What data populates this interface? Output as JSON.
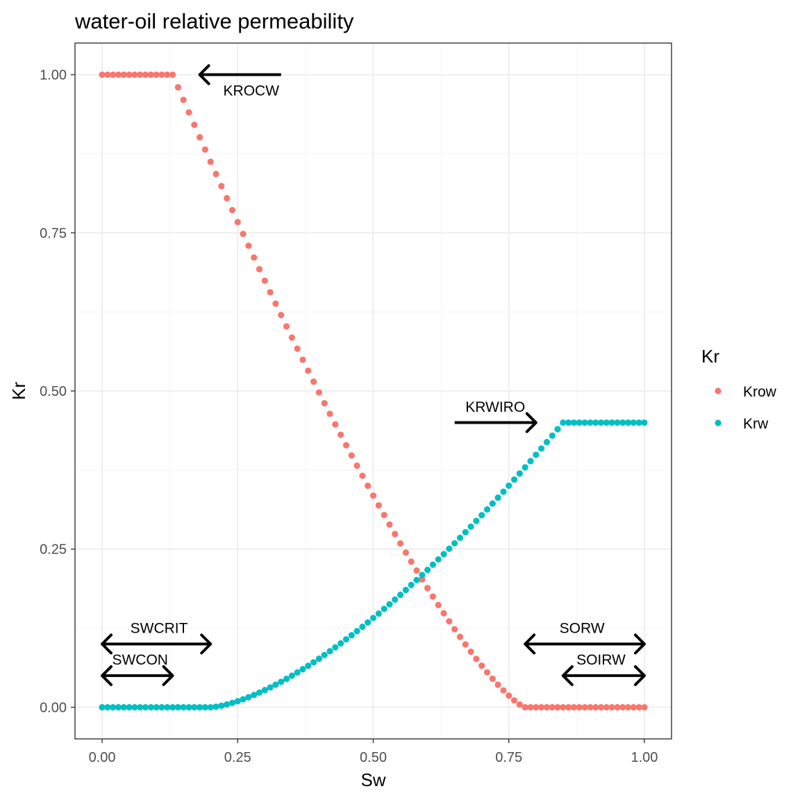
{
  "chart_data": {
    "type": "scatter",
    "title": "water-oil relative permeability",
    "xlabel": "Sw",
    "ylabel": "Kr",
    "xlim": [
      -0.05,
      1.05
    ],
    "ylim": [
      -0.05,
      1.05
    ],
    "x_ticks": [
      0,
      0.25,
      0.5,
      0.75,
      1.0
    ],
    "x_tick_labels": [
      "0.00",
      "0.25",
      "0.50",
      "0.75",
      "1.00"
    ],
    "y_ticks": [
      0,
      0.25,
      0.5,
      0.75,
      1.0
    ],
    "y_tick_labels": [
      "0.00",
      "0.25",
      "0.50",
      "0.75",
      "1.00"
    ],
    "grid": true,
    "legend": {
      "title": "Kr",
      "placement": "right"
    },
    "params": {
      "SWCON": 0.13,
      "SWCRIT": 0.2,
      "SORW": 0.22,
      "SOIRW": 0.15,
      "KROCW": 1.0,
      "KRWIRO": 0.45,
      "x_step": 0.01
    },
    "series": [
      {
        "name": "Krow",
        "color": "#F8766D",
        "model": "Krow = KROCW for Sw <= SWCON; ((1 - Sw - SORW) / (1 - SWCON - SORW))^1.3 for SWCON < Sw < 1 - SORW; 0 for Sw >= 1 - SORW",
        "exponent": 1.3
      },
      {
        "name": "Krw",
        "color": "#00BFC4",
        "model": "Krw = 0 for Sw <= SWCRIT; KRWIRO * ((Sw - SWCRIT) / (1 - SOIRW - SWCRIT))^1.5 for SWCRIT < Sw < 1 - SOIRW; KRWIRO for Sw >= 1 - SOIRW",
        "exponent": 1.5
      }
    ],
    "annotations": [
      {
        "label": "KROCW",
        "x_from": 0.33,
        "x_to": 0.18,
        "y": 1.0,
        "heads": "end",
        "text_x": 0.275,
        "text_y": 0.975
      },
      {
        "label": "KRWIRO",
        "x_from": 0.65,
        "x_to": 0.8,
        "y": 0.45,
        "heads": "end",
        "text_x": 0.725,
        "text_y": 0.475
      },
      {
        "label": "SWCRIT",
        "x_from": 0.0,
        "x_to": 0.2,
        "y": 0.1,
        "heads": "both",
        "text_x": 0.105,
        "text_y": 0.125
      },
      {
        "label": "SWCON",
        "x_from": 0.0,
        "x_to": 0.13,
        "y": 0.05,
        "heads": "both",
        "text_x": 0.07,
        "text_y": 0.075
      },
      {
        "label": "SORW",
        "x_from": 0.78,
        "x_to": 1.0,
        "y": 0.1,
        "heads": "both",
        "text_x": 0.885,
        "text_y": 0.125
      },
      {
        "label": "SOIRW",
        "x_from": 0.85,
        "x_to": 1.0,
        "y": 0.05,
        "heads": "both",
        "text_x": 0.92,
        "text_y": 0.075
      }
    ]
  }
}
